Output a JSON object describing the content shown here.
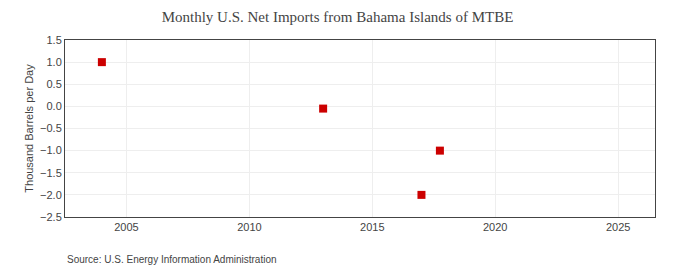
{
  "chart_data": {
    "type": "scatter",
    "title": "Monthly U.S. Net Imports from Bahama Islands of MTBE",
    "ylabel": "Thousand Barrels per Day",
    "annotations": [
      "Source: U.S. Energy Information Administration"
    ],
    "x": [
      2004.0,
      2013.0,
      2017.0,
      2017.75
    ],
    "values": [
      1.0,
      -0.05,
      -2.0,
      -1.0
    ],
    "color": "#cc0000",
    "marker": "square",
    "xlim": [
      2002.5,
      2026.5
    ],
    "ylim": [
      -2.5,
      1.5
    ],
    "xticks": [
      2005,
      2010,
      2015,
      2020,
      2025
    ],
    "yticks": [
      {
        "value": -2.5,
        "label": "−2.5"
      },
      {
        "value": -2.0,
        "label": "−2.0"
      },
      {
        "value": -1.5,
        "label": "−1.5"
      },
      {
        "value": -1.0,
        "label": "−1.0"
      },
      {
        "value": -0.5,
        "label": "−0.5"
      },
      {
        "value": 0.0,
        "label": "0.0"
      },
      {
        "value": 0.5,
        "label": "0.5"
      },
      {
        "value": 1.0,
        "label": "1.0"
      },
      {
        "value": 1.5,
        "label": "1.5"
      }
    ],
    "grid": true
  }
}
